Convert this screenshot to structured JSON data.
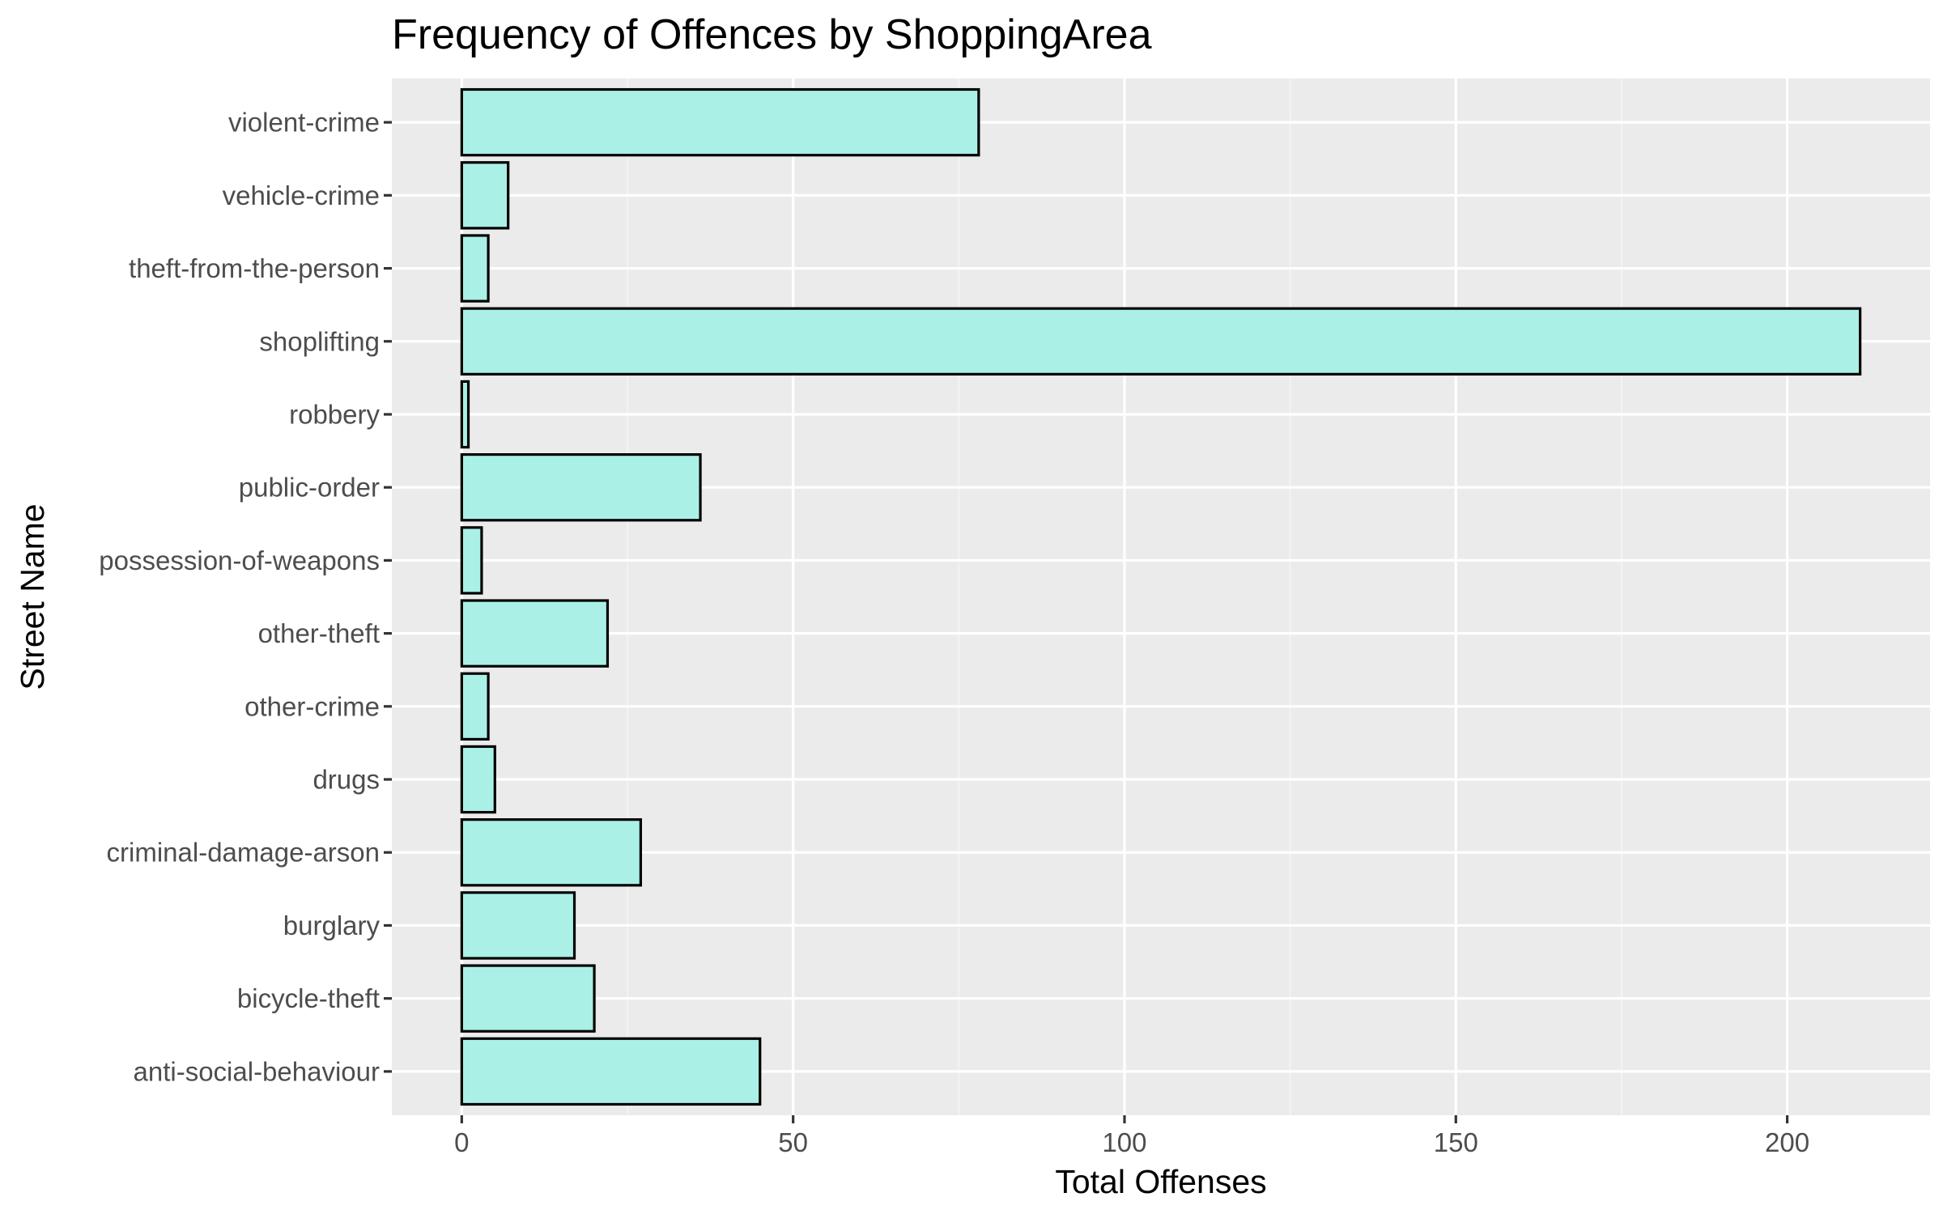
{
  "chart_data": {
    "type": "bar",
    "orientation": "horizontal",
    "title": "Frequency of Offences by ShoppingArea",
    "xlabel": "Total Offenses",
    "ylabel": "Street Name",
    "categories": [
      "anti-social-behaviour",
      "bicycle-theft",
      "burglary",
      "criminal-damage-arson",
      "drugs",
      "other-crime",
      "other-theft",
      "possession-of-weapons",
      "public-order",
      "robbery",
      "shoplifting",
      "theft-from-the-person",
      "vehicle-crime",
      "violent-crime"
    ],
    "values": [
      45,
      20,
      17,
      27,
      5,
      4,
      22,
      3,
      36,
      1,
      211,
      4,
      7,
      78
    ],
    "xlim": [
      -10.55,
      221.55
    ],
    "xticks": [
      0,
      50,
      100,
      150,
      200
    ],
    "xtick_labels": [
      "0",
      "50",
      "100",
      "150",
      "200"
    ],
    "grid": true,
    "colors": {
      "bar_fill": "#aaf0e6",
      "bar_stroke": "#000000",
      "panel_background": "#ebebeb",
      "grid_major": "#ffffff",
      "grid_minor": "#f5f5f5"
    }
  }
}
